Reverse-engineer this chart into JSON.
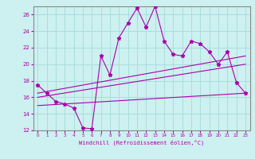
{
  "xlabel": "Windchill (Refroidissement éolien,°C)",
  "bg_color": "#cdf0f0",
  "grid_color": "#aadddd",
  "line_color": "#aa00aa",
  "spine_color": "#888888",
  "xlim": [
    -0.5,
    23.5
  ],
  "ylim": [
    12,
    27
  ],
  "yticks": [
    12,
    14,
    16,
    18,
    20,
    22,
    24,
    26
  ],
  "xticks": [
    0,
    1,
    2,
    3,
    4,
    5,
    6,
    7,
    8,
    9,
    10,
    11,
    12,
    13,
    14,
    15,
    16,
    17,
    18,
    19,
    20,
    21,
    22,
    23
  ],
  "series": [
    {
      "x": [
        0,
        1,
        2,
        3,
        4,
        5,
        6,
        7,
        8,
        9,
        10,
        11,
        12,
        13,
        14,
        15,
        16,
        17,
        18,
        19,
        20,
        21,
        22,
        23
      ],
      "y": [
        17.5,
        16.5,
        15.5,
        15.2,
        14.7,
        12.3,
        12.2,
        21.0,
        18.7,
        23.2,
        25.0,
        26.8,
        24.5,
        27.0,
        22.8,
        21.2,
        21.0,
        22.8,
        22.5,
        21.5,
        20.0,
        21.5,
        17.8,
        16.5
      ],
      "marker": true
    },
    {
      "x": [
        0,
        23
      ],
      "y": [
        16.5,
        21.0
      ],
      "marker": false
    },
    {
      "x": [
        0,
        23
      ],
      "y": [
        16.0,
        20.0
      ],
      "marker": false
    },
    {
      "x": [
        0,
        23
      ],
      "y": [
        15.0,
        16.5
      ],
      "marker": false
    }
  ]
}
